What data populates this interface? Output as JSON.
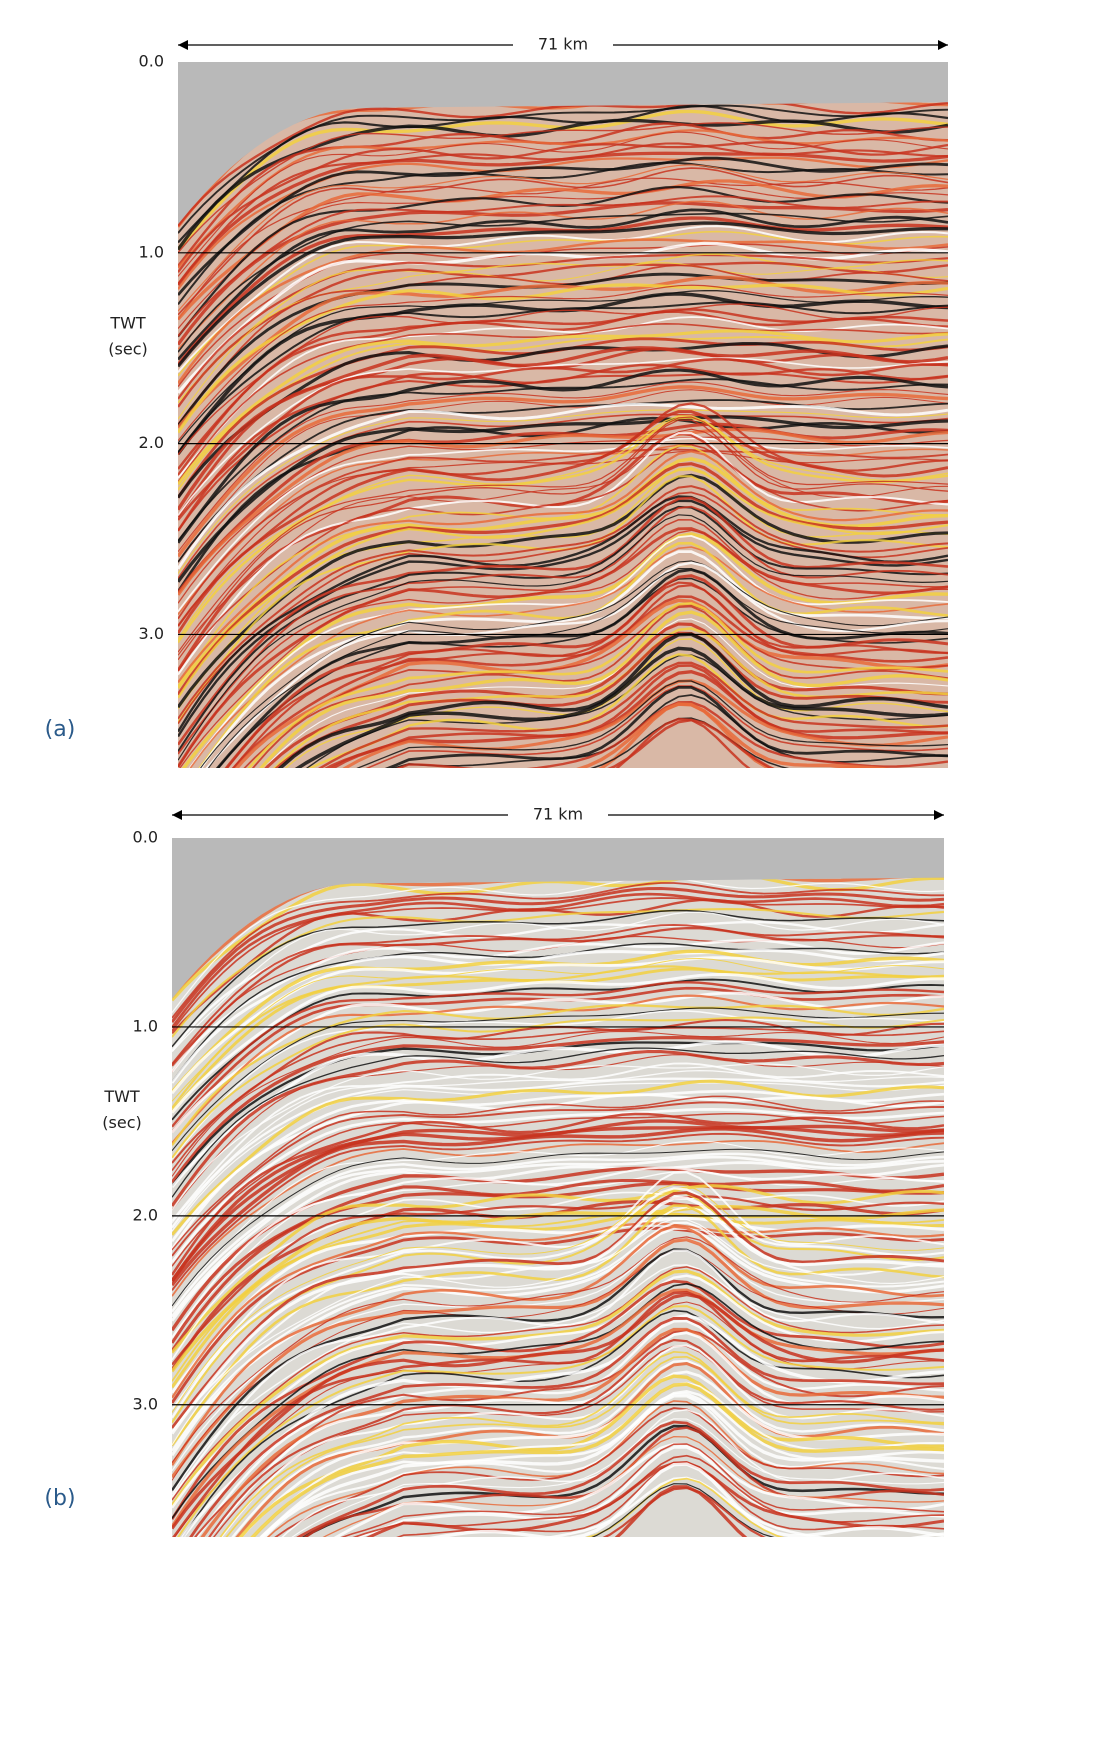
{
  "panels": [
    {
      "label": "(a)",
      "scale": "71 km",
      "axis_label": [
        "TWT",
        "(sec)"
      ],
      "yticks": [
        {
          "value": 0,
          "label": "0.0"
        },
        {
          "value": 1,
          "label": "1.0"
        },
        {
          "value": 2,
          "label": "2.0"
        },
        {
          "value": 3,
          "label": "3.0"
        }
      ],
      "ylim": [
        0,
        3.7
      ]
    },
    {
      "label": "(b)",
      "scale": "71 km",
      "axis_label": [
        "TWT",
        "(sec)"
      ],
      "yticks": [
        {
          "value": 0,
          "label": "0.0"
        },
        {
          "value": 1,
          "label": "1.0"
        },
        {
          "value": 2,
          "label": "2.0"
        },
        {
          "value": 3,
          "label": "3.0"
        }
      ],
      "ylim": [
        0,
        3.7
      ]
    }
  ]
}
